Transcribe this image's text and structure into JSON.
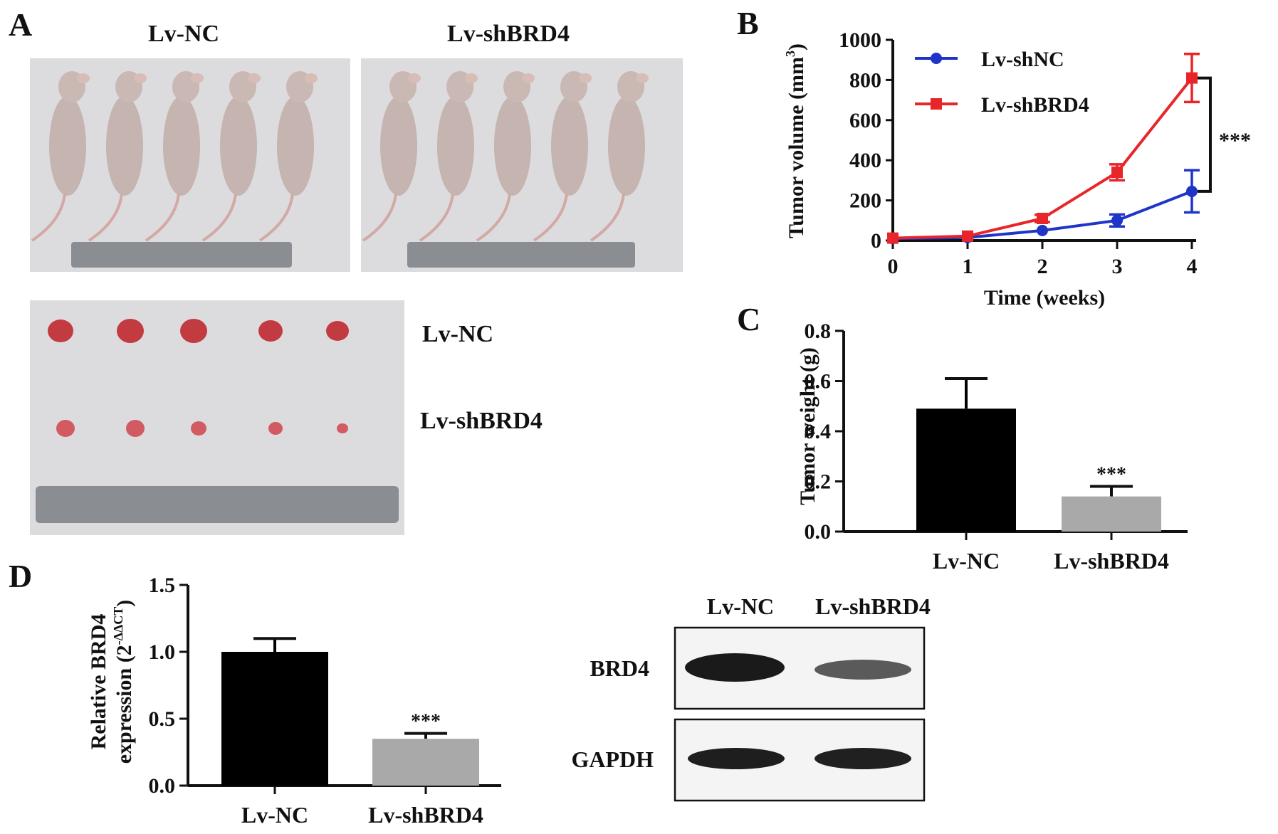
{
  "panels": {
    "A": {
      "letter": "A",
      "mice_labels": [
        "Lv-NC",
        "Lv-shBRD4"
      ],
      "tumor_row_labels": [
        "Lv-NC",
        "Lv-shBRD4"
      ]
    },
    "D_blot": {
      "lane_labels": [
        "Lv-NC",
        "Lv-shBRD4"
      ],
      "row_labels": [
        "BRD4",
        "GAPDH"
      ]
    }
  },
  "chart_data": [
    {
      "panel": "B",
      "type": "line",
      "xlabel": "Time (weeks)",
      "ylabel": "Tumor volume (mm",
      "ylabel_sup": "3",
      "ylabel_close": ")",
      "xlim": [
        0,
        4
      ],
      "ylim": [
        0,
        1000
      ],
      "x": [
        0,
        1,
        2,
        3,
        4
      ],
      "xticks": [
        "0",
        "1",
        "2",
        "3",
        "4"
      ],
      "yticks": [
        "0",
        "200",
        "400",
        "600",
        "800",
        "1000"
      ],
      "series": [
        {
          "name": "Lv-shNC",
          "values": [
            10,
            15,
            50,
            100,
            245
          ],
          "errors": [
            8,
            8,
            12,
            30,
            105
          ],
          "color": "#1f35c8",
          "marker": "circle"
        },
        {
          "name": "Lv-shBRD4",
          "values": [
            12,
            22,
            110,
            340,
            810
          ],
          "errors": [
            8,
            10,
            18,
            40,
            120
          ],
          "color": "#e8262a",
          "marker": "square"
        }
      ],
      "significance": "***",
      "legend_position": "top-left"
    },
    {
      "panel": "C",
      "type": "bar",
      "ylabel": "Tumor weight (g)",
      "ylim": [
        0,
        0.8
      ],
      "yticks": [
        "0.0",
        "0.2",
        "0.4",
        "0.6",
        "0.8"
      ],
      "categories": [
        "Lv-NC",
        "Lv-shBRD4"
      ],
      "values": [
        0.49,
        0.14
      ],
      "errors": [
        0.12,
        0.04
      ],
      "colors": [
        "#000000",
        "#a9a9a9"
      ],
      "significance": [
        "",
        "***"
      ]
    },
    {
      "panel": "D",
      "type": "bar",
      "ylabel_line1": "Relative BRD4",
      "ylabel_line2": "expression (2",
      "ylabel_sup": "-ΔΔCT",
      "ylabel_close": ")",
      "ylim": [
        0,
        1.5
      ],
      "yticks": [
        "0.0",
        "0.5",
        "1.0",
        "1.5"
      ],
      "categories": [
        "Lv-NC",
        "Lv-shBRD4"
      ],
      "values": [
        1.0,
        0.35
      ],
      "errors": [
        0.1,
        0.04
      ],
      "colors": [
        "#000000",
        "#a9a9a9"
      ],
      "significance": [
        "",
        "***"
      ]
    }
  ],
  "panel_letters": [
    "A",
    "B",
    "C",
    "D"
  ]
}
